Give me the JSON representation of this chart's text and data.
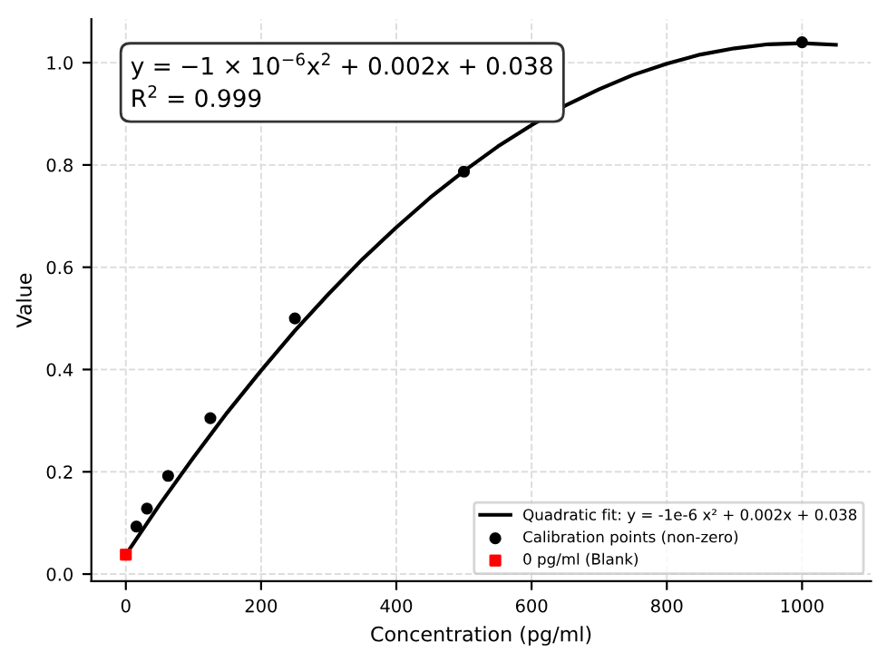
{
  "chart_data": {
    "type": "scatter",
    "xlabel": "Concentration (pg/ml)",
    "ylabel": "Value",
    "xlim": [
      -51,
      1102
    ],
    "ylim": [
      -0.014,
      1.085
    ],
    "xticks": [
      0,
      200,
      400,
      600,
      800,
      1000
    ],
    "yticks": [
      {
        "value": 0,
        "label": "0.0"
      },
      {
        "value": 0.2,
        "label": "0.2"
      },
      {
        "value": 0.4,
        "label": "0.4"
      },
      {
        "value": 0.6,
        "label": "0.6"
      },
      {
        "value": 0.8,
        "label": "0.8"
      },
      {
        "value": 1.0,
        "label": "1.0"
      }
    ],
    "grid": true,
    "legend": "bottom right",
    "annotations": [
      "y = −1 × 10$^{−6}$x$^{2}$ + 0.002x + 0.038\nR$^{2}$ = 0.999"
    ],
    "series": [
      {
        "type": "line",
        "name": "Quadratic fit: y = -1e-6 x² + 0.002x + 0.038",
        "color": "#000000",
        "marker": "none",
        "line_style": "solid",
        "x": [
          0,
          50,
          100,
          150,
          200,
          250,
          300,
          350,
          400,
          450,
          500,
          550,
          600,
          650,
          700,
          750,
          800,
          850,
          900,
          950,
          1000,
          1050
        ],
        "values": [
          0.038,
          0.136,
          0.228,
          0.316,
          0.398,
          0.476,
          0.548,
          0.616,
          0.678,
          0.736,
          0.788,
          0.836,
          0.878,
          0.916,
          0.948,
          0.976,
          0.998,
          1.016,
          1.028,
          1.036,
          1.038,
          1.035
        ]
      },
      {
        "name": "Calibration points (non-zero)",
        "color": "#000000",
        "marker": "circle",
        "x": [
          15.6,
          31.25,
          62.5,
          125,
          250,
          500,
          1000
        ],
        "values": [
          0.093,
          0.128,
          0.192,
          0.305,
          0.5,
          0.787,
          1.04
        ]
      },
      {
        "name": "0 pg/ml (Blank)",
        "color": "#ff0000",
        "marker": "square",
        "x": [
          0
        ],
        "values": [
          0.038
        ]
      }
    ]
  }
}
